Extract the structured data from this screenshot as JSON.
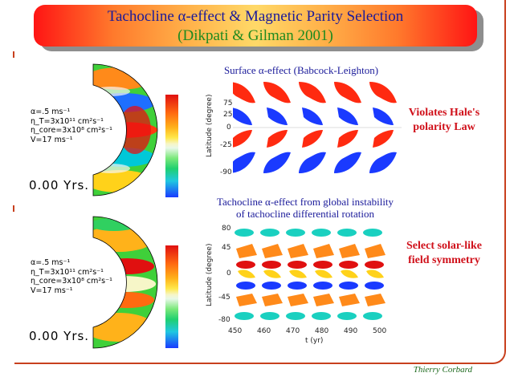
{
  "header": {
    "title": "Tachocline α-effect & Magnetic Parity Selection",
    "subtitle": "(Dikpati & Gilman 2001)"
  },
  "panels": {
    "top": {
      "caption": "Surface α-effect (Babcock-Leighton)",
      "note_line1": "Violates Hale's",
      "note_line2": "polarity Law",
      "params": [
        "α=.5 ms⁻¹",
        "η_T=3x10¹¹ cm²s⁻¹",
        "η_core=3x10⁸ cm²s⁻¹",
        "V=17 ms⁻¹"
      ],
      "years": "0.00 Yrs.",
      "y_ticks": [
        "75",
        "25",
        "0",
        "-25",
        "-90"
      ],
      "y_label": "Latitude (degree)"
    },
    "bottom": {
      "caption_line1": "Tachocline  α-effect from global instability",
      "caption_line2": "of tachocline differential rotation",
      "note_line1": "Select solar-like",
      "note_line2": "field symmetry",
      "params": [
        "α=.5 ms⁻¹",
        "η_T=3x10¹¹ cm²s⁻¹",
        "η_core=3x10⁸ cm²s⁻¹",
        "V=17 ms⁻¹"
      ],
      "years": "0.00 Yrs.",
      "y_ticks": [
        "80",
        "45",
        "0",
        "-45",
        "-80"
      ],
      "y_label": "Latitude (degree)",
      "x_ticks": [
        "450",
        "460",
        "470",
        "480",
        "490",
        "500"
      ],
      "x_label": "t (yr)"
    }
  },
  "author": "Thierry Corbard",
  "colors": {
    "frame": "#c8401e",
    "title": "#1a1a9a",
    "subtitle": "#1f8a1f",
    "note": "#d0101a"
  }
}
